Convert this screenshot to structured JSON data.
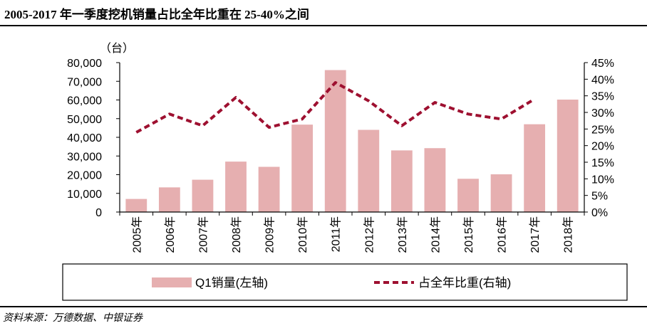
{
  "title": "2005-2017 年一季度挖机销量占比全年比重在 25-40%之间",
  "source": "资料来源：万德数据、中银证券",
  "chart_data": {
    "type": "bar+line",
    "unit_label": "（台）",
    "categories": [
      "2005年",
      "2006年",
      "2007年",
      "2008年",
      "2009年",
      "2010年",
      "2011年",
      "2012年",
      "2013年",
      "2014年",
      "2015年",
      "2016年",
      "2017年",
      "2018年"
    ],
    "series": [
      {
        "name": "Q1销量(左轴)",
        "type": "bar",
        "axis": "left",
        "color": "#e6afb0",
        "values": [
          7000,
          13200,
          17300,
          27000,
          24200,
          46800,
          76000,
          44000,
          33000,
          34200,
          17800,
          20200,
          47000,
          60200
        ]
      },
      {
        "name": "占全年比重(右轴)",
        "type": "line",
        "axis": "right",
        "color": "#9e1030",
        "style": "dashed",
        "values": [
          24,
          29.5,
          26,
          34.5,
          25.5,
          28,
          39,
          33.5,
          26,
          33,
          29.5,
          28,
          34,
          null
        ]
      }
    ],
    "left_axis": {
      "min": 0,
      "max": 80000,
      "ticks": [
        "0",
        "10,000",
        "20,000",
        "30,000",
        "40,000",
        "50,000",
        "60,000",
        "70,000",
        "80,000"
      ]
    },
    "right_axis": {
      "min": 0,
      "max": 45,
      "ticks": [
        "0%",
        "5%",
        "10%",
        "15%",
        "20%",
        "25%",
        "30%",
        "35%",
        "40%",
        "45%"
      ]
    },
    "grid": false,
    "legend_position": "bottom"
  }
}
